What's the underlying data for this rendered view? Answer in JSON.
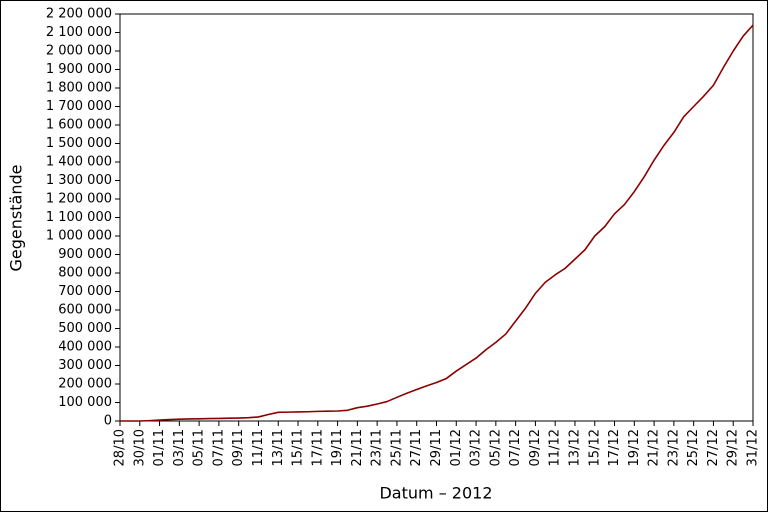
{
  "chart_data": {
    "type": "line",
    "x_label": "Datum – 2012",
    "y_label": "Gegenstände",
    "categories": [
      "28/10",
      null,
      "30/10",
      null,
      "01/11",
      null,
      "03/11",
      null,
      "05/11",
      null,
      "07/11",
      null,
      "09/11",
      null,
      "11/11",
      null,
      "13/11",
      null,
      "15/11",
      null,
      "17/11",
      null,
      "19/11",
      null,
      "21/11",
      null,
      "23/11",
      null,
      "25/11",
      null,
      "27/11",
      null,
      "29/11",
      null,
      "01/12",
      null,
      "03/12",
      null,
      "05/12",
      null,
      "07/12",
      null,
      "09/12",
      null,
      "11/12",
      null,
      "13/12",
      null,
      "15/12",
      null,
      "17/12",
      null,
      "19/12",
      null,
      "21/12",
      null,
      "23/12",
      null,
      "25/12",
      null,
      "27/12",
      null,
      "29/12",
      null,
      "31/12"
    ],
    "series": [
      {
        "name": "Gegenstände",
        "color": "#8b0000",
        "values": [
          0,
          0,
          0,
          2000,
          5000,
          8000,
          10000,
          11000,
          12000,
          13000,
          14000,
          15000,
          16000,
          18000,
          22000,
          35000,
          47000,
          48000,
          49000,
          50000,
          52000,
          53000,
          54000,
          58000,
          72000,
          80000,
          92000,
          105000,
          128000,
          150000,
          170000,
          190000,
          208000,
          230000,
          270000,
          305000,
          340000,
          385000,
          425000,
          470000,
          540000,
          610000,
          690000,
          750000,
          790000,
          825000,
          875000,
          925000,
          1000000,
          1050000,
          1120000,
          1170000,
          1240000,
          1320000,
          1410000,
          1490000,
          1560000,
          1645000,
          1700000,
          1755000,
          1815000,
          1910000,
          2000000,
          2080000,
          2140000
        ]
      }
    ],
    "ylim": [
      0,
      2200000
    ],
    "yticks": [
      0,
      {
        "value": 100000,
        "label": "100 000"
      },
      {
        "value": 200000,
        "label": "200 000"
      },
      {
        "value": 300000,
        "label": "300 000"
      },
      {
        "value": 400000,
        "label": "400 000"
      },
      {
        "value": 500000,
        "label": "500 000"
      },
      {
        "value": 600000,
        "label": "600 000"
      },
      {
        "value": 700000,
        "label": "700 000"
      },
      {
        "value": 800000,
        "label": "800 000"
      },
      {
        "value": 900000,
        "label": "900 000"
      },
      {
        "value": 1000000,
        "label": "1 000 000"
      },
      {
        "value": 1100000,
        "label": "1 100 000"
      },
      {
        "value": 1200000,
        "label": "1 200 000"
      },
      {
        "value": 1300000,
        "label": "1 300 000"
      },
      {
        "value": 1400000,
        "label": "1 400 000"
      },
      {
        "value": 1500000,
        "label": "1 500 000"
      },
      {
        "value": 1600000,
        "label": "1 600 000"
      },
      {
        "value": 1700000,
        "label": "1 700 000"
      },
      {
        "value": 1800000,
        "label": "1 800 000"
      },
      {
        "value": 1900000,
        "label": "1 900 000"
      },
      {
        "value": 2000000,
        "label": "2 000 000"
      },
      {
        "value": 2100000,
        "label": "2 100 000"
      },
      {
        "value": 2200000,
        "label": "2 200 000"
      }
    ],
    "grid": false
  }
}
